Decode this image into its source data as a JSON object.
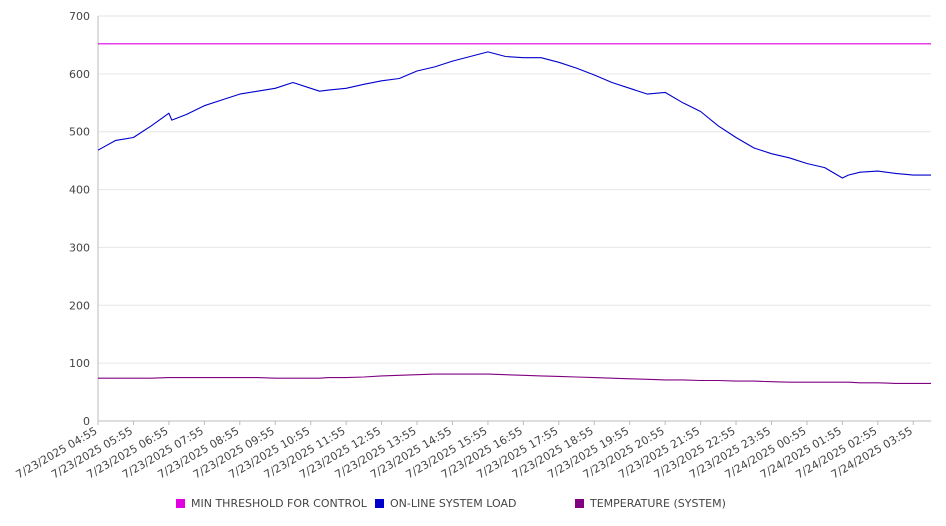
{
  "colors": {
    "threshold": "#e000e0",
    "load": "#0000cc",
    "temperature": "#800080",
    "grid": "#e6e6e6",
    "axis": "#bbbbbb"
  },
  "chart_data": {
    "type": "line",
    "title": "",
    "xlabel": "",
    "ylabel": "",
    "ylim": [
      0,
      700
    ],
    "yticks": [
      0,
      100,
      200,
      300,
      400,
      500,
      600,
      700
    ],
    "grid": true,
    "legend_position": "bottom",
    "x_tick_labels": [
      "7/23/2025 04:55",
      "7/23/2025 05:55",
      "7/23/2025 06:55",
      "7/23/2025 07:55",
      "7/23/2025 08:55",
      "7/23/2025 09:55",
      "7/23/2025 10:55",
      "7/23/2025 11:55",
      "7/23/2025 12:55",
      "7/23/2025 13:55",
      "7/23/2025 14:55",
      "7/23/2025 15:55",
      "7/23/2025 16:55",
      "7/23/2025 17:55",
      "7/23/2025 18:55",
      "7/23/2025 19:55",
      "7/23/2025 20:55",
      "7/23/2025 21:55",
      "7/23/2025 22:55",
      "7/23/2025 23:55",
      "7/24/2025 00:55",
      "7/24/2025 01:55",
      "7/24/2025 02:55",
      "7/24/2025 03:55"
    ],
    "x": [
      "7/23/2025 04:55",
      "7/23/2025 05:25",
      "7/23/2025 05:55",
      "7/23/2025 06:25",
      "7/23/2025 06:55",
      "7/23/2025 07:00",
      "7/23/2025 07:25",
      "7/23/2025 07:55",
      "7/23/2025 08:25",
      "7/23/2025 08:55",
      "7/23/2025 09:25",
      "7/23/2025 09:55",
      "7/23/2025 10:25",
      "7/23/2025 10:55",
      "7/23/2025 11:10",
      "7/23/2025 11:25",
      "7/23/2025 11:55",
      "7/23/2025 12:25",
      "7/23/2025 12:55",
      "7/23/2025 13:25",
      "7/23/2025 13:55",
      "7/23/2025 14:25",
      "7/23/2025 14:55",
      "7/23/2025 15:25",
      "7/23/2025 15:55",
      "7/23/2025 16:25",
      "7/23/2025 16:55",
      "7/23/2025 17:25",
      "7/23/2025 17:55",
      "7/23/2025 18:25",
      "7/23/2025 18:55",
      "7/23/2025 19:25",
      "7/23/2025 19:55",
      "7/23/2025 20:25",
      "7/23/2025 20:55",
      "7/23/2025 21:25",
      "7/23/2025 21:55",
      "7/23/2025 22:25",
      "7/23/2025 22:55",
      "7/23/2025 23:25",
      "7/23/2025 23:55",
      "7/24/2025 00:25",
      "7/24/2025 00:55",
      "7/24/2025 01:25",
      "7/24/2025 01:55",
      "7/24/2025 02:05",
      "7/24/2025 02:25",
      "7/24/2025 02:55",
      "7/24/2025 03:25",
      "7/24/2025 03:55",
      "7/24/2025 04:25"
    ],
    "series": [
      {
        "name": "MIN THRESHOLD FOR CONTROL",
        "color_key": "threshold",
        "values": [
          652,
          652,
          652,
          652,
          652,
          652,
          652,
          652,
          652,
          652,
          652,
          652,
          652,
          652,
          652,
          652,
          652,
          652,
          652,
          652,
          652,
          652,
          652,
          652,
          652,
          652,
          652,
          652,
          652,
          652,
          652,
          652,
          652,
          652,
          652,
          652,
          652,
          652,
          652,
          652,
          652,
          652,
          652,
          652,
          652,
          652,
          652,
          652,
          652,
          652,
          652
        ]
      },
      {
        "name": "ON-LINE SYSTEM LOAD",
        "color_key": "load",
        "values": [
          468,
          485,
          490,
          510,
          532,
          520,
          530,
          545,
          555,
          565,
          570,
          575,
          585,
          575,
          570,
          572,
          575,
          582,
          588,
          592,
          605,
          612,
          622,
          630,
          638,
          630,
          628,
          628,
          620,
          610,
          598,
          585,
          575,
          565,
          568,
          550,
          535,
          510,
          490,
          472,
          462,
          455,
          445,
          438,
          420,
          425,
          430,
          432,
          428,
          425,
          425
        ]
      },
      {
        "name": "TEMPERATURE (SYSTEM)",
        "color_key": "temperature",
        "values": [
          74,
          74,
          74,
          74,
          75,
          75,
          75,
          75,
          75,
          75,
          75,
          74,
          74,
          74,
          74,
          75,
          75,
          76,
          78,
          79,
          80,
          81,
          81,
          81,
          81,
          80,
          79,
          78,
          77,
          76,
          75,
          74,
          73,
          72,
          71,
          71,
          70,
          70,
          69,
          69,
          68,
          67,
          67,
          67,
          67,
          67,
          66,
          66,
          65,
          65,
          65
        ]
      }
    ]
  }
}
